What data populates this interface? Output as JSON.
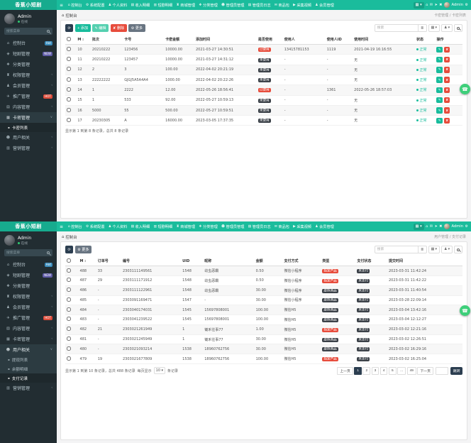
{
  "brand": {
    "logo": "香蕉小短剧"
  },
  "icons": {
    "toggle": "≡",
    "home": "⌂",
    "grid_btn": "▦ ▾",
    "gear": "⚙",
    "phone": "☎",
    "refresh": "⟳",
    "menu_lines": "≣",
    "columns_btn": "▦ ▾",
    "user_btn": "♟ ▾",
    "caret_down": "▾",
    "sort": "↕",
    "sub_dot": "▪"
  },
  "navbar": {
    "admin": "Admin",
    "items": [
      {
        "icon": "⌂",
        "label": "控制台"
      },
      {
        "icon": "⚙",
        "label": "系统配置"
      },
      {
        "icon": "♟",
        "label": "个人资料"
      },
      {
        "icon": "▤",
        "label": "收入明细"
      },
      {
        "icon": "▥",
        "label": "短剧明细"
      },
      {
        "icon": "♜",
        "label": "商城管理"
      },
      {
        "icon": "❖",
        "label": "分类管理"
      },
      {
        "icon": "☻",
        "label": "管理员管理"
      },
      {
        "icon": "▤",
        "label": "管理员日志"
      },
      {
        "icon": "✉",
        "label": "商品包"
      },
      {
        "icon": "▶",
        "label": "采集视频"
      },
      {
        "icon": "♟",
        "label": "会员管理"
      }
    ],
    "right_icons": [
      "⌂",
      "✉",
      "➤",
      "✖"
    ]
  },
  "sidebar": {
    "user_name": "Admin",
    "user_status": "在线",
    "search_placeholder": "搜索菜单"
  },
  "search": {
    "placeholder": "搜索"
  },
  "panels": [
    {
      "crumb_left": "控制台",
      "crumb_right": "卡密管理 / 卡密列表",
      "sidebar": [
        {
          "icon": "⌂",
          "label": "控制台",
          "badge": {
            "text": "Hot",
            "c": "blue"
          }
        },
        {
          "icon": "◈",
          "label": "短剧管理",
          "badge": {
            "text": "NEW",
            "c": "purple"
          }
        },
        {
          "icon": "❖",
          "label": "分类管理"
        },
        {
          "icon": "♜",
          "label": "权限管理",
          "arrow": true
        },
        {
          "icon": "♟",
          "label": "会员管理",
          "arrow": true
        },
        {
          "icon": "✈",
          "label": "推广管理",
          "badge": {
            "text": "HOT",
            "c": "redb"
          }
        },
        {
          "icon": "▤",
          "label": "内容管理",
          "arrow": true
        },
        {
          "icon": "▦",
          "label": "卡密管理",
          "arrow": true,
          "expanded": true,
          "submenu": [
            {
              "label": "卡密列表",
              "active": true
            }
          ]
        },
        {
          "icon": "☻",
          "label": "用户相关",
          "arrow": true
        },
        {
          "icon": "▥",
          "label": "营销管理",
          "arrow": true
        }
      ],
      "toolbar": [
        {
          "icon": "⟳",
          "label": "",
          "style": "dark",
          "name": "refresh-button"
        },
        {
          "icon": "+",
          "label": "添加",
          "style": "green",
          "name": "add-button"
        },
        {
          "icon": "✎",
          "label": "编辑",
          "style": "teal",
          "name": "edit-button"
        },
        {
          "icon": "✘",
          "label": "删除",
          "style": "red",
          "name": "delete-button"
        },
        {
          "icon": "⚙",
          "label": "更多",
          "style": "gray",
          "name": "more-button"
        }
      ],
      "table": {
        "columns": [
          {
            "type": "check"
          },
          {
            "label": "M",
            "sort": true
          },
          {
            "label": "批次"
          },
          {
            "label": "卡号"
          },
          {
            "label": "卡密金额"
          },
          {
            "label": "添加时间"
          },
          {
            "label": "是否使用"
          },
          {
            "label": "使用人"
          },
          {
            "label": "使用人ID"
          },
          {
            "label": "使用时间"
          },
          {
            "label": "状态"
          },
          {
            "label": "操作",
            "type": "actions"
          }
        ],
        "rows": [
          [
            "",
            "10",
            "20210222",
            "123456",
            "10000.00",
            "2021-03-27 14:30:51",
            {
              "t": "已使用",
              "c": "red"
            },
            "13415781153",
            "1119",
            "2021-04-19 16:16:55",
            {
              "t": "正常",
              "c": "ok"
            },
            ""
          ],
          [
            "",
            "11",
            "20210222",
            "123457",
            "10000.00",
            "2021-03-27 14:31:12",
            {
              "t": "未使用",
              "c": "dark"
            },
            "-",
            "-",
            "无",
            {
              "t": "正常",
              "c": "ok"
            },
            ""
          ],
          [
            "",
            "12",
            "2",
            "3",
            "100.00",
            "2022-04-02 20:21:19",
            {
              "t": "未使用",
              "c": "dark"
            },
            "-",
            "-",
            "无",
            {
              "t": "正常",
              "c": "ok"
            },
            ""
          ],
          [
            "",
            "13",
            "22222222",
            "GJGJ5A5A4A4",
            "1000.00",
            "2022-04-02 20:22:26",
            {
              "t": "未使用",
              "c": "dark"
            },
            "-",
            "-",
            "无",
            {
              "t": "正常",
              "c": "ok"
            },
            ""
          ],
          [
            "",
            "14",
            "1",
            "2222",
            "12.00",
            "2022-05-26 18:56:41",
            {
              "t": "已使用",
              "c": "red"
            },
            "-",
            "1361",
            "2022-05-26 18:57:03",
            {
              "t": "正常",
              "c": "ok"
            },
            ""
          ],
          [
            "",
            "15",
            "1",
            "533",
            "92.00",
            "2022-05-27 10:59:13",
            {
              "t": "未使用",
              "c": "dark"
            },
            "-",
            "-",
            "无",
            {
              "t": "正常",
              "c": "ok"
            },
            ""
          ],
          [
            "",
            "16",
            "5000",
            "55",
            "500.00",
            "2022-05-27 10:59:51",
            {
              "t": "未使用",
              "c": "dark"
            },
            "-",
            "-",
            "无",
            {
              "t": "正常",
              "c": "ok"
            },
            ""
          ],
          [
            "",
            "17",
            "20230305",
            "A",
            "16000.00",
            "2023-03-05 17:37:35",
            {
              "t": "未使用",
              "c": "dark"
            },
            "-",
            "-",
            "无",
            {
              "t": "正常",
              "c": "ok"
            },
            ""
          ]
        ]
      },
      "footer_info": "显示第 1 到第 8 条记录，总共 8 条记录"
    },
    {
      "crumb_left": "控制台",
      "crumb_right": "用户管理 / 支付记录",
      "sidebar": [
        {
          "icon": "⌂",
          "label": "控制台",
          "badge": {
            "text": "Hot",
            "c": "blue"
          }
        },
        {
          "icon": "◈",
          "label": "短剧管理",
          "badge": {
            "text": "NEW",
            "c": "purple"
          }
        },
        {
          "icon": "❖",
          "label": "分类管理"
        },
        {
          "icon": "♜",
          "label": "权限管理",
          "arrow": true
        },
        {
          "icon": "♟",
          "label": "会员管理",
          "arrow": true
        },
        {
          "icon": "✈",
          "label": "推广管理",
          "badge": {
            "text": "HOT",
            "c": "redb"
          }
        },
        {
          "icon": "▤",
          "label": "内容管理",
          "arrow": true
        },
        {
          "icon": "▦",
          "label": "卡密管理",
          "arrow": true
        },
        {
          "icon": "☻",
          "label": "用户相关",
          "arrow": true,
          "expanded": true,
          "submenu": [
            {
              "label": "提现列表"
            },
            {
              "label": "余额明细"
            },
            {
              "label": "支付记录",
              "active": true
            }
          ]
        },
        {
          "icon": "▥",
          "label": "营销管理",
          "arrow": true
        }
      ],
      "toolbar": [
        {
          "icon": "⟳",
          "label": "",
          "style": "dark",
          "name": "refresh-button"
        },
        {
          "icon": "⚙",
          "label": "更多",
          "style": "gray",
          "name": "more-button"
        }
      ],
      "table": {
        "columns": [
          {
            "type": "check"
          },
          {
            "label": "M",
            "sort": true
          },
          {
            "label": "订单号"
          },
          {
            "label": "编号"
          },
          {
            "label": "UID"
          },
          {
            "label": "昵称"
          },
          {
            "label": "金额"
          },
          {
            "label": "支付方式"
          },
          {
            "label": "类型"
          },
          {
            "label": "支付状态"
          },
          {
            "label": "提交时间"
          }
        ],
        "rows": [
          [
            "",
            "488",
            "33",
            "2303111149561",
            "1548",
            "幼虫恶霸",
            "0.50",
            "微信小程序",
            {
              "t": "指定产品",
              "c": "red"
            },
            {
              "t": "未支付",
              "c": "dark"
            },
            "2023-03-31 11:42:24"
          ],
          [
            "",
            "487",
            "29",
            "2303111171912",
            "1548",
            "幼虫恶霸",
            "0.50",
            "微信小程序",
            {
              "t": "指定产品",
              "c": "red"
            },
            {
              "t": "未支付",
              "c": "dark"
            },
            "2023-03-31 11:42:22"
          ],
          [
            "",
            "486",
            "-",
            "2303111122961",
            "1548",
            "幼虫恶霸",
            "30.00",
            "微信小程序",
            {
              "t": "虚拟商品",
              "c": "dark"
            },
            {
              "t": "未支付",
              "c": "dark"
            },
            "2023-03-31 11:40:54"
          ],
          [
            "",
            "485",
            "-",
            "2303091169471",
            "1547",
            "-",
            "30.00",
            "微信小程序",
            {
              "t": "虚拟商品",
              "c": "dark"
            },
            {
              "t": "未支付",
              "c": "dark"
            },
            "2023-03-28 22:09:14"
          ],
          [
            "",
            "484",
            "-",
            "2303040174031",
            "1545",
            "15697808001",
            "100.00",
            "微信H5",
            {
              "t": "虚拟商品",
              "c": "dark"
            },
            {
              "t": "未支付",
              "c": "dark"
            },
            "2023-03-04 13:42:16"
          ],
          [
            "",
            "483",
            "-",
            "2303041239522",
            "1545",
            "15697808001",
            "100.00",
            "微信H5",
            {
              "t": "虚拟商品",
              "c": "dark"
            },
            {
              "t": "未支付",
              "c": "dark"
            },
            "2023-03-04 12:12:27"
          ],
          [
            "",
            "482",
            "21",
            "2303021261949",
            "1",
            "锄禾往事77",
            "1.00",
            "微信H5",
            {
              "t": "指定产品",
              "c": "red"
            },
            {
              "t": "未支付",
              "c": "dark"
            },
            "2023-03-02 12:21:16"
          ],
          [
            "",
            "481",
            "-",
            "2303021245949",
            "1",
            "锄禾往事77",
            "30.00",
            "微信H5",
            {
              "t": "虚拟商品",
              "c": "dark"
            },
            {
              "t": "未支付",
              "c": "dark"
            },
            "2023-03-02 12:26:51"
          ],
          [
            "",
            "480",
            "-",
            "2303021093214",
            "1538",
            "18960762756",
            "30.00",
            "微信H5",
            {
              "t": "虚拟商品",
              "c": "dark"
            },
            {
              "t": "未支付",
              "c": "dark"
            },
            "2023-03-02 16:29:16"
          ],
          [
            "",
            "479",
            "19",
            "2303021677809",
            "1538",
            "18960762756",
            "100.00",
            "微信H5",
            {
              "t": "指定产品",
              "c": "red"
            },
            {
              "t": "未支付",
              "c": "dark"
            },
            "2023-03-02 16:25:04"
          ]
        ]
      },
      "footer_info": "显示第 1 到第 10 条记录，总共 488 条记录",
      "per_page_prefix": "每页显示",
      "per_page": "10",
      "per_page_suffix": "条记录",
      "pager": {
        "pages": [
          "上一页",
          "1",
          "2",
          "3",
          "4",
          "5",
          "...",
          "49",
          "下一页"
        ],
        "active": "1",
        "jump_label": "跳转"
      }
    }
  ]
}
